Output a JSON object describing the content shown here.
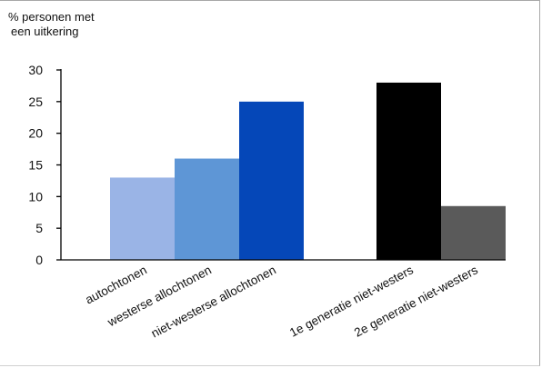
{
  "chart_data": {
    "type": "bar",
    "ylabel": [
      "% personen met",
      "een uitkering"
    ],
    "xlabel": "",
    "ylim": [
      0,
      30
    ],
    "yticks": [
      0,
      5,
      10,
      15,
      20,
      25,
      30
    ],
    "grid": false,
    "legend": "none",
    "groups": [
      {
        "categories": [
          "autochtonen",
          "westerse allochtonen",
          "niet-westerse allochtonen"
        ],
        "values": [
          13,
          16,
          25
        ],
        "colors": [
          "#9ab4e6",
          "#5e96d6",
          "#0547b8"
        ]
      },
      {
        "categories": [
          "1e generatie niet-westers",
          "2e generatie niet-westers"
        ],
        "values": [
          28,
          8.5
        ],
        "colors": [
          "#000000",
          "#5a5a5a"
        ]
      }
    ]
  }
}
